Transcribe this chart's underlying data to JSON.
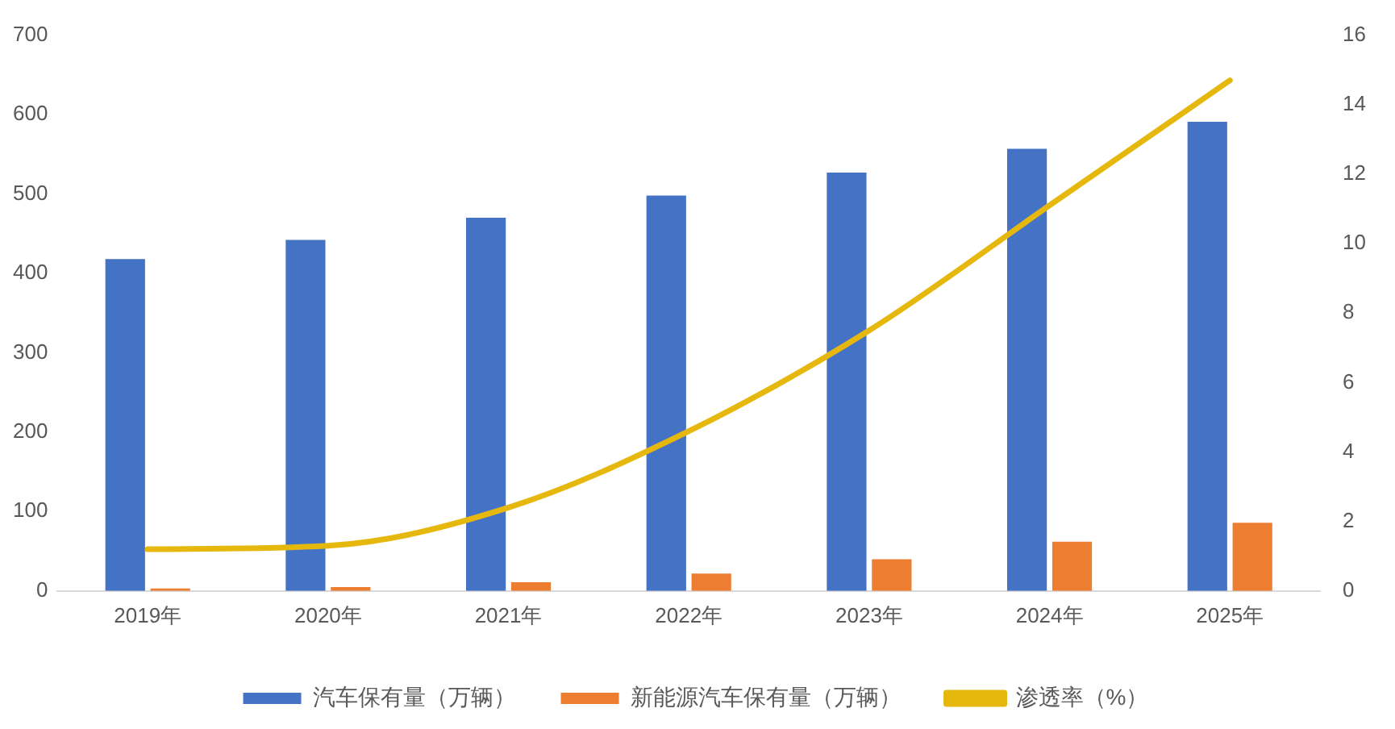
{
  "chart_data": {
    "type": "bar",
    "categories": [
      "2019年",
      "2020年",
      "2021年",
      "2022年",
      "2023年",
      "2024年",
      "2025年"
    ],
    "series": [
      {
        "name": "汽车保有量（万辆）",
        "color": "#4472c4",
        "values": [
          418,
          442,
          470,
          498,
          527,
          557,
          591
        ]
      },
      {
        "name": "新能源汽车保有量（万辆）",
        "color": "#ed7d31",
        "values": [
          3,
          5,
          11,
          22,
          40,
          62,
          86
        ]
      },
      {
        "name": "渗透率（%）",
        "type": "line",
        "axis": "y2",
        "color": "#e6b80e",
        "values": [
          1.2,
          1.3,
          2.4,
          4.6,
          7.5,
          11.1,
          14.7
        ]
      }
    ],
    "ylim": [
      0,
      700
    ],
    "yticks": [
      0,
      100,
      200,
      300,
      400,
      500,
      600,
      700
    ],
    "y2lim": [
      0,
      16
    ],
    "y2ticks": [
      0,
      2,
      4,
      6,
      8,
      10,
      12,
      14,
      16
    ],
    "grid": false,
    "legend": "bottom",
    "marker": "none"
  }
}
